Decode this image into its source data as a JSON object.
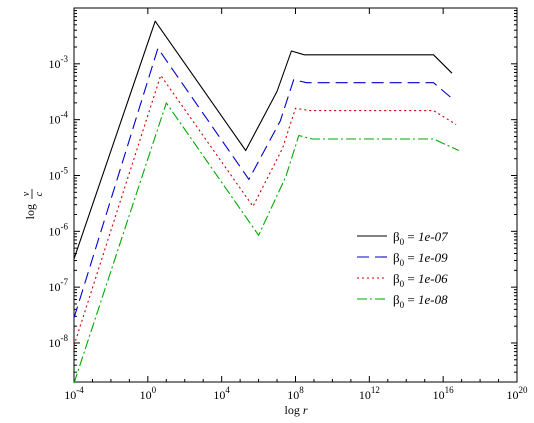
{
  "chart_data": {
    "type": "line",
    "x_scale": "log",
    "y_scale": "log",
    "xlabel_base": "log",
    "xlabel_var": "r",
    "ylabel_base": "log",
    "ylabel_num": "v",
    "ylabel_den": "c",
    "xlim": [
      0.0001,
      1e+20
    ],
    "ylim": [
      2e-09,
      0.01
    ],
    "x_ticks": [
      {
        "base": "10",
        "exp": "-4",
        "value": 0.0001
      },
      {
        "base": "10",
        "exp": "0",
        "value": 1
      },
      {
        "base": "10",
        "exp": "4",
        "value": 10000
      },
      {
        "base": "10",
        "exp": "8",
        "value": 100000000
      },
      {
        "base": "10",
        "exp": "12",
        "value": 1000000000000.0
      },
      {
        "base": "10",
        "exp": "16",
        "value": 1e+16
      },
      {
        "base": "10",
        "exp": "20",
        "value": 1e+20
      }
    ],
    "y_ticks": [
      {
        "base": "10",
        "exp": "-8",
        "value": 1e-08
      },
      {
        "base": "10",
        "exp": "-7",
        "value": 1e-07
      },
      {
        "base": "10",
        "exp": "-6",
        "value": 1e-06
      },
      {
        "base": "10",
        "exp": "-5",
        "value": 1e-05
      },
      {
        "base": "10",
        "exp": "-4",
        "value": 0.0001
      },
      {
        "base": "10",
        "exp": "-3",
        "value": 0.001
      }
    ],
    "legend_position": "lower-right",
    "series": [
      {
        "sym": "β",
        "sub": "0",
        "eq": " = ",
        "val": "1e-07",
        "color": "#000000",
        "dash": "",
        "points": [
          [
            0.0001,
            3.2e-07
          ],
          [
            2.5,
            0.0058
          ],
          [
            200000,
            2.8e-05
          ],
          [
            10000000,
            0.00032
          ],
          [
            60000000,
            0.0017
          ],
          [
            300000000,
            0.00145
          ],
          [
            3000000000000000.0,
            0.00145
          ],
          [
            3e+16,
            0.00068
          ]
        ]
      },
      {
        "sym": "β",
        "sub": "0",
        "eq": " = ",
        "val": "1e-09",
        "color": "#0000cc",
        "dash": "12,6",
        "points": [
          [
            0.0001,
            2.8e-08
          ],
          [
            3.5,
            0.0019
          ],
          [
            300000,
            8.5e-06
          ],
          [
            15000000,
            9.5e-05
          ],
          [
            80000000,
            0.00052
          ],
          [
            400000000,
            0.00046
          ],
          [
            3000000000000000.0,
            0.00046
          ],
          [
            3e+16,
            0.00024
          ]
        ]
      },
      {
        "sym": "β",
        "sub": "0",
        "eq": " = ",
        "val": "1e-06",
        "color": "#cc0000",
        "dash": "2,3",
        "points": [
          [
            0.0001,
            9e-09
          ],
          [
            5,
            0.00062
          ],
          [
            500000,
            2.8e-06
          ],
          [
            20000000,
            3.1e-05
          ],
          [
            100000000,
            0.00016
          ],
          [
            600000000,
            0.000145
          ],
          [
            3000000000000000.0,
            0.000145
          ],
          [
            5e+16,
            8.2e-05
          ]
        ]
      },
      {
        "sym": "β",
        "sub": "0",
        "eq": " = ",
        "val": "1e-08",
        "color": "#00aa00",
        "dash": "10,3,2,3",
        "points": [
          [
            0.0001,
            1.9e-09
          ],
          [
            10,
            0.0002
          ],
          [
            1000000,
            8.5e-07
          ],
          [
            30000000,
            9.5e-06
          ],
          [
            150000000,
            5.2e-05
          ],
          [
            800000000,
            4.5e-05
          ],
          [
            3000000000000000.0,
            4.5e-05
          ],
          [
            7e+16,
            2.8e-05
          ]
        ]
      }
    ]
  }
}
